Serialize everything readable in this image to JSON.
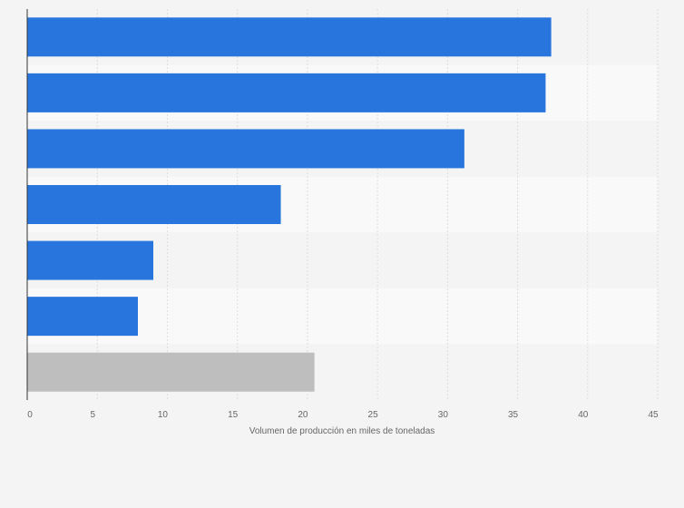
{
  "chart_data": {
    "type": "bar",
    "orientation": "horizontal",
    "categories": [
      "",
      "",
      "",
      "",
      "",
      "",
      ""
    ],
    "values": [
      37.4,
      37.0,
      31.2,
      18.1,
      9.0,
      7.9,
      20.5
    ],
    "bar_colors": [
      "#2876dd",
      "#2876dd",
      "#2876dd",
      "#2876dd",
      "#2876dd",
      "#2876dd",
      "#bebebe"
    ],
    "xlabel": "Volumen de producción en miles de toneladas",
    "xlim": [
      0,
      45
    ],
    "xticks": [
      "0",
      "5",
      "10",
      "15",
      "20",
      "25",
      "30",
      "35",
      "40",
      "45"
    ],
    "grid": true
  }
}
